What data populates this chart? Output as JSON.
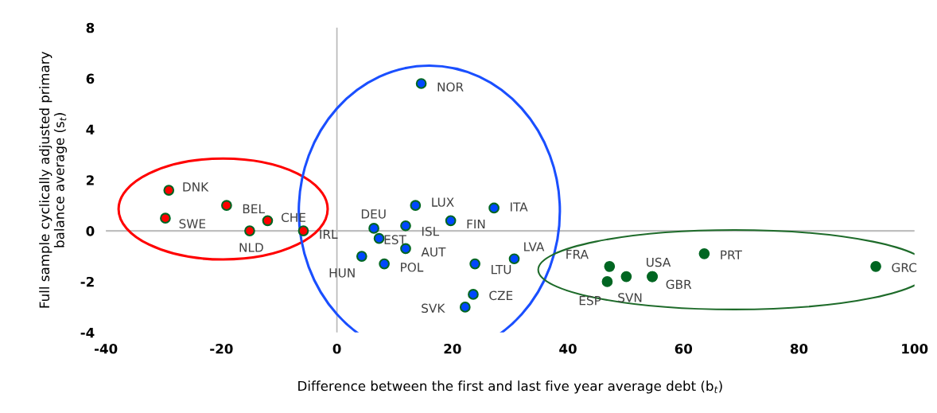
{
  "chart_data": {
    "type": "scatter",
    "xlabel": "Difference between the first and last five year average debt (b$_{t}$)",
    "ylabel": "Full sample cyclically adjusted primary\nbalance average (s$_{t}$)",
    "xlim": [
      -40,
      100
    ],
    "xticks": [
      -40,
      -20,
      0,
      20,
      40,
      60,
      80,
      100
    ],
    "ylim": [
      -4,
      8
    ],
    "yticks": [
      -4,
      -2,
      0,
      2,
      4,
      6,
      8
    ],
    "grid": false,
    "marker": "circle",
    "ref_lines": [
      {
        "axis": "x",
        "value": 0,
        "color": "#b8b8b8"
      },
      {
        "axis": "y",
        "value": 0,
        "color": "#bfbfbf"
      }
    ],
    "series": [
      {
        "color": "#ff0000",
        "x": [
          -29.1,
          -29.7,
          -19.1,
          -15.1,
          -12.0,
          -5.8
        ],
        "values": [
          1.6,
          0.5,
          1.0,
          0.0,
          0.4,
          0.0
        ]
      },
      {
        "color": "#0047ff",
        "x": [
          14.6,
          13.6,
          27.2,
          19.7,
          6.4,
          11.9,
          7.3,
          11.9,
          4.3,
          8.2,
          23.9,
          30.7,
          23.6,
          22.2
        ],
        "values": [
          5.8,
          1.0,
          0.9,
          0.4,
          0.1,
          0.2,
          -0.3,
          -0.7,
          -1.0,
          -1.3,
          -1.3,
          -1.1,
          -2.5,
          -3.0
        ]
      },
      {
        "color": "#006622",
        "x": [
          47.2,
          46.8,
          50.1,
          54.6,
          54.6,
          63.6,
          93.3
        ],
        "values": [
          -1.4,
          -2.0,
          -1.8,
          -1.8,
          -1.8,
          -0.9,
          -1.4
        ]
      }
    ],
    "annotations": [
      {
        "text": "DNK",
        "x": -29.1,
        "y": 1.6
      },
      {
        "text": "SWE",
        "x": -29.7,
        "y": 0.5
      },
      {
        "text": "BEL",
        "x": -19.1,
        "y": 1.0
      },
      {
        "text": "NLD",
        "x": -15.1,
        "y": 0.0
      },
      {
        "text": "CHE",
        "x": -12.0,
        "y": 0.4
      },
      {
        "text": "IRL",
        "x": -5.8,
        "y": 0.0
      },
      {
        "text": "NOR",
        "x": 14.6,
        "y": 5.8
      },
      {
        "text": "LUX",
        "x": 13.6,
        "y": 1.0
      },
      {
        "text": "ITA",
        "x": 27.2,
        "y": 0.9
      },
      {
        "text": "FIN",
        "x": 19.7,
        "y": 0.4
      },
      {
        "text": "DEU",
        "x": 6.4,
        "y": 0.1
      },
      {
        "text": "ISL",
        "x": 11.9,
        "y": 0.2
      },
      {
        "text": "EST",
        "x": 7.3,
        "y": -0.3
      },
      {
        "text": "AUT",
        "x": 11.9,
        "y": -0.7
      },
      {
        "text": "HUN",
        "x": 4.3,
        "y": -1.0
      },
      {
        "text": "POL",
        "x": 8.2,
        "y": -1.3
      },
      {
        "text": "LTU",
        "x": 23.9,
        "y": -1.3
      },
      {
        "text": "LVA",
        "x": 30.7,
        "y": -1.1
      },
      {
        "text": "CZE",
        "x": 23.6,
        "y": -2.5
      },
      {
        "text": "SVK",
        "x": 22.2,
        "y": -3.0
      },
      {
        "text": "FRA",
        "x": 47.2,
        "y": -1.4
      },
      {
        "text": "ESP",
        "x": 46.8,
        "y": -2.0
      },
      {
        "text": "SVN",
        "x": 50.1,
        "y": -1.8
      },
      {
        "text": "USA",
        "x": 54.6,
        "y": -1.8
      },
      {
        "text": "GBR",
        "x": 54.6,
        "y": -1.8
      },
      {
        "text": "PRT",
        "x": 63.6,
        "y": -0.9
      },
      {
        "text": "GRC",
        "x": 93.3,
        "y": -1.4
      }
    ]
  }
}
